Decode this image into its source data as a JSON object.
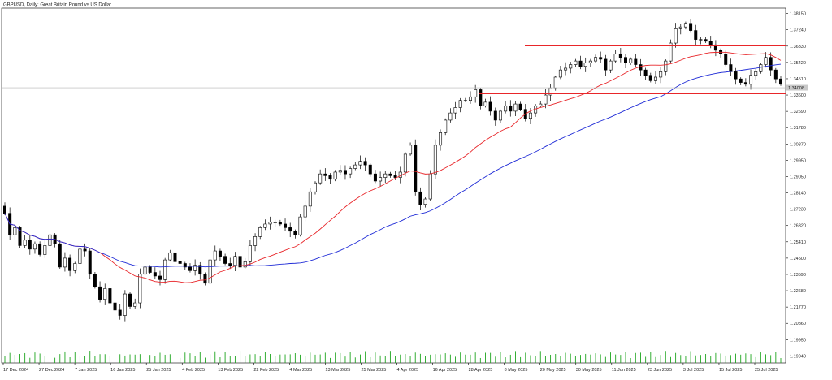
{
  "header": {
    "title": "GBPUSD, Daily:  Great Britain Pound vs US Dollar"
  },
  "price_tag": "1.34008",
  "chart_data": {
    "type": "candlestick",
    "symbol": "GBPUSD",
    "timeframe": "Daily",
    "title": "GBPUSD, Daily:  Great Britain Pound vs US Dollar",
    "ylim": [
      1.1865,
      1.3845
    ],
    "yticks": [
      "1.38150",
      "1.37240",
      "1.36330",
      "1.35420",
      "1.34510",
      "1.33600",
      "1.32690",
      "1.31780",
      "1.30870",
      "1.29950",
      "1.29050",
      "1.28140",
      "1.27230",
      "1.26320",
      "1.25410",
      "1.24500",
      "1.23590",
      "1.22680",
      "1.21770",
      "1.20860",
      "1.19950",
      "1.19040"
    ],
    "xticks": [
      "17 Dec 2024",
      "27 Dec 2024",
      "7 Jan 2025",
      "16 Jan 2025",
      "25 Jan 2025",
      "4 Feb 2025",
      "13 Feb 2025",
      "22 Feb 2025",
      "4 Mar 2025",
      "13 Mar 2025",
      "25 Mar 2025",
      "4 Apr 2025",
      "16 Apr 2025",
      "28 Apr 2025",
      "8 May 2025",
      "20 May 2025",
      "30 May 2025",
      "11 Jun 2025",
      "23 Jun 2025",
      "3 Jul 2025",
      "15 Jul 2025",
      "25 Jul 2025"
    ],
    "current_price": 1.34008,
    "support_level": 1.3368,
    "resistance_level": 1.3635,
    "ma_fast_color": "#e8262a",
    "ma_slow_color": "#1f2bd6",
    "bull_color": "#ffffff",
    "bear_color": "#000000",
    "level_color": "#e8262a",
    "volume_color": "#1ea51e",
    "path": [
      1.27,
      1.258,
      1.262,
      1.252,
      1.255,
      1.25,
      1.253,
      1.247,
      1.252,
      1.258,
      1.253,
      1.24,
      1.245,
      1.238,
      1.242,
      1.25,
      1.249,
      1.236,
      1.229,
      1.222,
      1.228,
      1.22,
      1.216,
      1.213,
      1.225,
      1.218,
      1.22,
      1.236,
      1.24,
      1.237,
      1.235,
      1.233,
      1.244,
      1.248,
      1.243,
      1.242,
      1.24,
      1.238,
      1.241,
      1.236,
      1.231,
      1.244,
      1.249,
      1.246,
      1.242,
      1.241,
      1.246,
      1.24,
      1.243,
      1.252,
      1.257,
      1.262,
      1.264,
      1.265,
      1.265,
      1.264,
      1.262,
      1.26,
      1.258,
      1.268,
      1.274,
      1.282,
      1.287,
      1.292,
      1.291,
      1.289,
      1.293,
      1.294,
      1.292,
      1.295,
      1.297,
      1.299,
      1.297,
      1.292,
      1.288,
      1.29,
      1.292,
      1.291,
      1.29,
      1.293,
      1.303,
      1.308,
      1.282,
      1.275,
      1.278,
      1.292,
      1.308,
      1.315,
      1.322,
      1.326,
      1.329,
      1.333,
      1.333,
      1.335,
      1.339,
      1.33,
      1.332,
      1.327,
      1.322,
      1.327,
      1.33,
      1.327,
      1.331,
      1.328,
      1.323,
      1.326,
      1.33,
      1.331,
      1.336,
      1.34,
      1.346,
      1.35,
      1.351,
      1.353,
      1.355,
      1.352,
      1.354,
      1.355,
      1.357,
      1.356,
      1.35,
      1.355,
      1.359,
      1.357,
      1.354,
      1.356,
      1.353,
      1.35,
      1.347,
      1.344,
      1.346,
      1.349,
      1.355,
      1.365,
      1.373,
      1.374,
      1.376,
      1.372,
      1.367,
      1.367,
      1.366,
      1.364,
      1.361,
      1.359,
      1.353,
      1.349,
      1.345,
      1.343,
      1.342,
      1.347,
      1.349,
      1.353,
      1.357,
      1.35,
      1.345,
      1.342
    ]
  }
}
